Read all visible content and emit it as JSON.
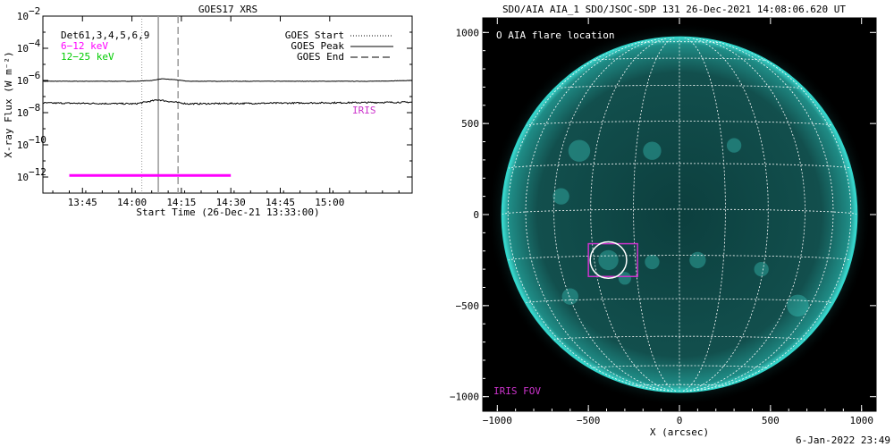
{
  "chart_data": [
    {
      "type": "line",
      "title": "GOES17 XRS",
      "xlabel": "Start Time (26-Dec-21 13:33:00)",
      "ylabel": "X-ray Flux (W m⁻²)",
      "y_scale": "log",
      "ylim_exponents": [
        -13,
        -2
      ],
      "xlim_minutes_after_start": [
        0,
        112
      ],
      "x_ticks": [
        {
          "label": "13:45",
          "minutes": 12
        },
        {
          "label": "14:00",
          "minutes": 27
        },
        {
          "label": "14:15",
          "minutes": 42
        },
        {
          "label": "14:30",
          "minutes": 57
        },
        {
          "label": "14:45",
          "minutes": 72
        },
        {
          "label": "15:00",
          "minutes": 87
        }
      ],
      "y_tick_exponents": [
        -12,
        -10,
        -8,
        -6,
        -4,
        -2
      ],
      "y_tick_base": "10",
      "channels_label": "Det61,3,4,5,6,9",
      "legend_left": [
        {
          "label": "6−12 keV",
          "color": "#ff00ff"
        },
        {
          "label": "12−25 keV",
          "color": "#00cc00"
        }
      ],
      "legend_right": [
        {
          "label": "GOES Start",
          "style": "dotted"
        },
        {
          "label": "GOES Peak",
          "style": "solid"
        },
        {
          "label": "GOES End",
          "style": "dashed"
        }
      ],
      "event_lines_minutes": {
        "start": 30,
        "peak": 35,
        "end": 41
      },
      "iris_label": "IRIS",
      "iris_color": "#cc33cc",
      "series": [
        {
          "name": "",
          "color": "#000000",
          "baseline_exp": -6.05,
          "points": [
            [
              0,
              -6.05
            ],
            [
              28,
              -6.05
            ],
            [
              33,
              -6.0
            ],
            [
              36,
              -5.9
            ],
            [
              40,
              -5.95
            ],
            [
              44,
              -6.05
            ],
            [
              100,
              -6.05
            ],
            [
              112,
              -6.0
            ]
          ]
        },
        {
          "name": "",
          "color": "#000000",
          "baseline_exp": -7.4,
          "points": [
            [
              0,
              -7.4
            ],
            [
              28,
              -7.45
            ],
            [
              31,
              -7.35
            ],
            [
              35,
              -7.2
            ],
            [
              38,
              -7.3
            ],
            [
              44,
              -7.45
            ],
            [
              112,
              -7.35
            ]
          ]
        }
      ],
      "iris_interval_minutes": [
        8,
        57
      ],
      "iris_interval_level_exp": -11.9
    },
    {
      "type": "image",
      "title": "SDO/AIA AIA_1 SDO/JSOC-SDP 131 26-Dec-2021 14:08:06.620 UT",
      "xlabel": "X (arcsec)",
      "xlim": [
        -1080,
        1080
      ],
      "ylim": [
        -1080,
        1080
      ],
      "x_ticks": [
        -1000,
        -500,
        0,
        500,
        1000
      ],
      "y_ticks": [
        -1000,
        -500,
        0,
        500,
        1000
      ],
      "x_tick_labels": [
        "−1000",
        "−500",
        "0",
        "500",
        "1000"
      ],
      "y_tick_labels": [
        "−1000",
        "−500",
        "0",
        "500",
        "1000"
      ],
      "solar_radius_arcsec": 975,
      "flare_legend": "O AIA flare location",
      "flare_location": [
        -390,
        -250
      ],
      "flare_circle_radius_arcsec": 100,
      "iris_fov": {
        "label": "IRIS FOV",
        "color": "#cc33cc",
        "x": [
          -500,
          -230
        ],
        "y": [
          -340,
          -160
        ]
      },
      "disk_color": "#0d4a48",
      "limb_color": "#2fd7cc",
      "grid_color": "#ffffff",
      "background": "#000000"
    }
  ],
  "footer": {
    "timestamp": "6-Jan-2022 23:49"
  }
}
